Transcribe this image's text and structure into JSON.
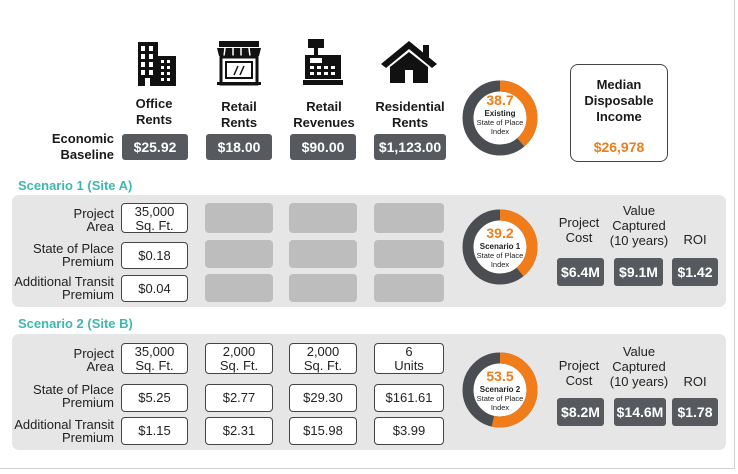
{
  "baseline": {
    "label": [
      "Economic",
      "Baseline"
    ],
    "columns": [
      {
        "icon": "office-building-icon",
        "label": [
          "Office",
          "Rents"
        ],
        "value": "$25.92"
      },
      {
        "icon": "storefront-icon",
        "label": [
          "Retail",
          "Rents"
        ],
        "value": "$18.00"
      },
      {
        "icon": "cash-register-icon",
        "label": [
          "Retail",
          "Revenues"
        ],
        "value": "$90.00"
      },
      {
        "icon": "house-icon",
        "label": [
          "Residential",
          "Rents"
        ],
        "value": "$1,123.00"
      }
    ],
    "index": {
      "value": "38.7",
      "fraction": 0.387,
      "title": "Existing",
      "sub": [
        "State of Place",
        "Index"
      ]
    },
    "income": {
      "label": [
        "Median",
        "Disposable",
        "Income"
      ],
      "value": "$26,978"
    }
  },
  "scenarios": [
    {
      "title": "Scenario 1 (Site A)",
      "row_labels": [
        [
          "Project",
          "Area"
        ],
        [
          "State of Place",
          "Premium"
        ],
        [
          "Additional Transit",
          "Premium"
        ]
      ],
      "col1": [
        [
          "35,000",
          "Sq. Ft."
        ],
        [
          "$0.18"
        ],
        [
          "$0.04"
        ]
      ],
      "index": {
        "value": "39.2",
        "fraction": 0.392,
        "title": "Scenario 1",
        "sub": [
          "State of Place",
          "Index"
        ]
      },
      "metrics": [
        {
          "label": [
            "Project",
            "Cost"
          ],
          "value": "$6.4M"
        },
        {
          "label": [
            "Value",
            "Captured",
            "(10 years)"
          ],
          "value": "$9.1M"
        },
        {
          "label": [
            "ROI"
          ],
          "value": "$1.42"
        }
      ]
    },
    {
      "title": "Scenario 2 (Site B)",
      "row_labels": [
        [
          "Project",
          "Area"
        ],
        [
          "State of Place",
          "Premium"
        ],
        [
          "Additional Transit",
          "Premium"
        ]
      ],
      "cells": [
        [
          [
            "35,000",
            "Sq. Ft."
          ],
          [
            "2,000",
            "Sq. Ft."
          ],
          [
            "2,000",
            "Sq. Ft."
          ],
          [
            "6",
            "Units"
          ]
        ],
        [
          [
            "$5.25"
          ],
          [
            "$2.77"
          ],
          [
            "$29.30"
          ],
          [
            "$161.61"
          ]
        ],
        [
          [
            "$1.15"
          ],
          [
            "$2.31"
          ],
          [
            "$15.98"
          ],
          [
            "$3.99"
          ]
        ]
      ],
      "index": {
        "value": "53.5",
        "fraction": 0.535,
        "title": "Scenario 2",
        "sub": [
          "State of Place",
          "Index"
        ]
      },
      "metrics": [
        {
          "label": [
            "Project",
            "Cost"
          ],
          "value": "$8.2M"
        },
        {
          "label": [
            "Value",
            "Captured",
            "(10 years)"
          ],
          "value": "$14.6M"
        },
        {
          "label": [
            "ROI"
          ],
          "value": "$1.78"
        }
      ]
    }
  ],
  "colors": {
    "accent": "#f07d1a",
    "dark": "#565a5e",
    "teal": "#3fb8af",
    "panel": "#e6e6e6"
  }
}
